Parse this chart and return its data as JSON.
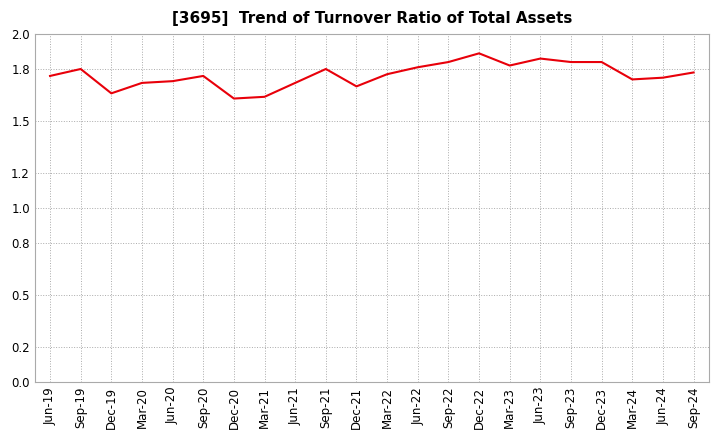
{
  "title": "[3695]  Trend of Turnover Ratio of Total Assets",
  "labels": [
    "Jun-19",
    "Sep-19",
    "Dec-19",
    "Mar-20",
    "Jun-20",
    "Sep-20",
    "Dec-20",
    "Mar-21",
    "Jun-21",
    "Sep-21",
    "Dec-21",
    "Mar-22",
    "Jun-22",
    "Sep-22",
    "Dec-22",
    "Mar-23",
    "Jun-23",
    "Sep-23",
    "Dec-23",
    "Mar-24",
    "Jun-24",
    "Sep-24"
  ],
  "values": [
    1.76,
    1.8,
    1.66,
    1.72,
    1.73,
    1.76,
    1.63,
    1.64,
    1.72,
    1.8,
    1.7,
    1.77,
    1.81,
    1.84,
    1.89,
    1.82,
    1.86,
    1.84,
    1.84,
    1.74,
    1.75,
    1.78
  ],
  "line_color": "#e8000a",
  "line_width": 1.5,
  "ylim": [
    0.0,
    2.0
  ],
  "yticks": [
    0.0,
    0.2,
    0.5,
    0.8,
    1.0,
    1.2,
    1.5,
    1.8,
    2.0
  ],
  "grid_color": "#aaaaaa",
  "grid_style": "dotted",
  "background_color": "#ffffff",
  "title_fontsize": 11,
  "tick_fontsize": 8.5
}
